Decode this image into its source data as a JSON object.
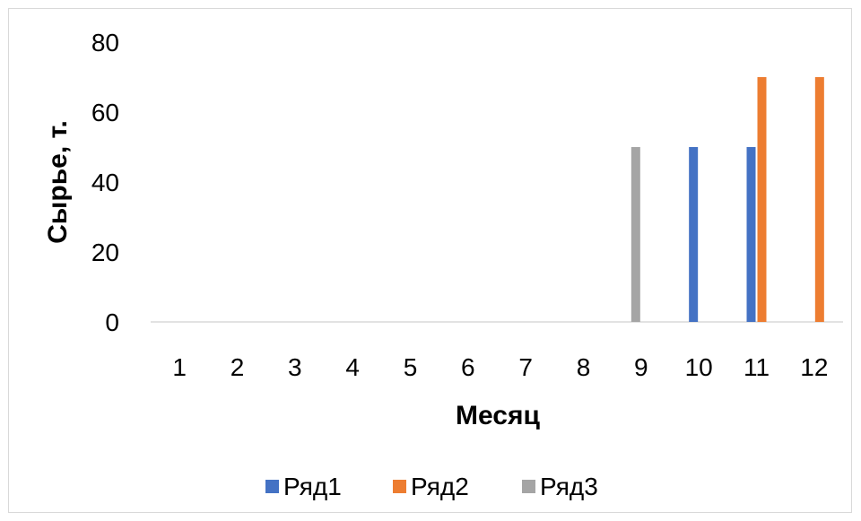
{
  "chart_data": {
    "type": "bar",
    "title": "",
    "xlabel": "Месяц",
    "ylabel": "Сырье, т.",
    "ylim": [
      0,
      80
    ],
    "yticks": [
      0,
      20,
      40,
      60,
      80
    ],
    "grid": false,
    "legend_position": "bottom",
    "categories": [
      "1",
      "2",
      "3",
      "4",
      "5",
      "6",
      "7",
      "8",
      "9",
      "10",
      "11",
      "12"
    ],
    "series": [
      {
        "name": "Ряд1",
        "color": "#4472c4",
        "values": [
          0,
          0,
          0,
          0,
          0,
          0,
          0,
          0,
          0,
          50,
          50,
          0
        ]
      },
      {
        "name": "Ряд2",
        "color": "#ed7d31",
        "values": [
          0,
          0,
          0,
          0,
          0,
          0,
          0,
          0,
          0,
          0,
          70,
          70
        ]
      },
      {
        "name": "Ряд3",
        "color": "#a5a5a5",
        "values": [
          0,
          0,
          0,
          0,
          0,
          0,
          0,
          0,
          50,
          0,
          0,
          0
        ]
      }
    ]
  }
}
